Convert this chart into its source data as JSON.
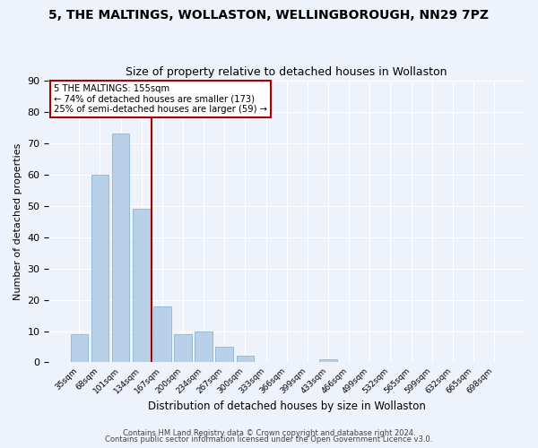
{
  "title": "5, THE MALTINGS, WOLLASTON, WELLINGBOROUGH, NN29 7PZ",
  "subtitle": "Size of property relative to detached houses in Wollaston",
  "xlabel": "Distribution of detached houses by size in Wollaston",
  "ylabel": "Number of detached properties",
  "categories": [
    "35sqm",
    "68sqm",
    "101sqm",
    "134sqm",
    "167sqm",
    "200sqm",
    "234sqm",
    "267sqm",
    "300sqm",
    "333sqm",
    "366sqm",
    "399sqm",
    "433sqm",
    "466sqm",
    "499sqm",
    "532sqm",
    "565sqm",
    "599sqm",
    "632sqm",
    "665sqm",
    "698sqm"
  ],
  "values": [
    9,
    60,
    73,
    49,
    18,
    9,
    10,
    5,
    2,
    0,
    0,
    0,
    1,
    0,
    0,
    0,
    0,
    0,
    0,
    0,
    0
  ],
  "bar_color": "#b8d0e8",
  "bar_edge_color": "#8ab4d4",
  "vline_x": 3.5,
  "vline_color": "#aa0000",
  "annotation_text": "5 THE MALTINGS: 155sqm\n← 74% of detached houses are smaller (173)\n25% of semi-detached houses are larger (59) →",
  "annotation_box_edge": "#aa0000",
  "footer1": "Contains HM Land Registry data © Crown copyright and database right 2024.",
  "footer2": "Contains public sector information licensed under the Open Government Licence v3.0.",
  "ylim": [
    0,
    90
  ],
  "background_color": "#eef2fa",
  "grid_color": "#ffffff",
  "title_fontsize": 10,
  "subtitle_fontsize": 9,
  "yticks": [
    0,
    10,
    20,
    30,
    40,
    50,
    60,
    70,
    80,
    90
  ]
}
